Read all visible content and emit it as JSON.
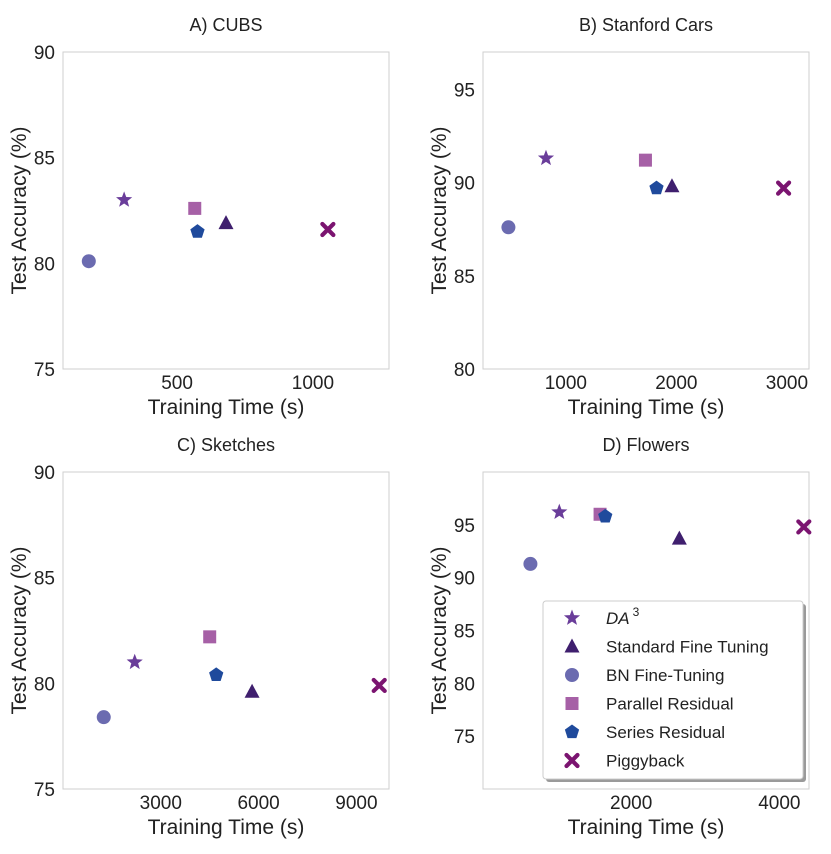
{
  "figure": {
    "xlabel": "Training Time (s)",
    "ylabel": "Test Accuracy (%)"
  },
  "legend": {
    "placement": "lower-right of panel D",
    "entries": [
      {
        "label": "DA",
        "superscript": "3",
        "marker": "star",
        "color": "#6a3d9a"
      },
      {
        "label": "Standard Fine Tuning",
        "marker": "triangle",
        "color": "#3f1f6e"
      },
      {
        "label": "BN Fine-Tuning",
        "marker": "circle",
        "color": "#6b6bb0"
      },
      {
        "label": "Parallel Residual",
        "marker": "square",
        "color": "#a660a6"
      },
      {
        "label": "Series Residual",
        "marker": "pentagon",
        "color": "#1f4a9c"
      },
      {
        "label": "Piggyback",
        "marker": "cross",
        "color": "#7b1470"
      }
    ]
  },
  "chart_data": [
    {
      "type": "scatter",
      "title": "A) CUBS",
      "xlabel": "Training Time (s)",
      "ylabel": "Test Accuracy (%)",
      "xlim": [
        80,
        1280
      ],
      "ylim": [
        75,
        90
      ],
      "xticks": [
        500,
        1000
      ],
      "yticks": [
        75,
        80,
        85,
        90
      ],
      "grid": false,
      "series": [
        {
          "name": "DA3",
          "x": [
            305
          ],
          "y": [
            83.0
          ]
        },
        {
          "name": "Standard Fine Tuning",
          "x": [
            680
          ],
          "y": [
            81.9
          ]
        },
        {
          "name": "BN Fine-Tuning",
          "x": [
            175
          ],
          "y": [
            80.1
          ]
        },
        {
          "name": "Parallel Residual",
          "x": [
            565
          ],
          "y": [
            82.6
          ]
        },
        {
          "name": "Series Residual",
          "x": [
            575
          ],
          "y": [
            81.5
          ]
        },
        {
          "name": "Piggyback",
          "x": [
            1055
          ],
          "y": [
            81.6
          ]
        }
      ]
    },
    {
      "type": "scatter",
      "title": "B) Stanford Cars",
      "xlabel": "Training Time (s)",
      "ylabel": "Test Accuracy (%)",
      "xlim": [
        250,
        3200
      ],
      "ylim": [
        80,
        97
      ],
      "xticks": [
        1000,
        2000,
        3000
      ],
      "yticks": [
        80,
        85,
        90,
        95
      ],
      "grid": false,
      "series": [
        {
          "name": "DA3",
          "x": [
            820
          ],
          "y": [
            91.3
          ]
        },
        {
          "name": "Standard Fine Tuning",
          "x": [
            1960
          ],
          "y": [
            89.8
          ]
        },
        {
          "name": "BN Fine-Tuning",
          "x": [
            480
          ],
          "y": [
            87.6
          ]
        },
        {
          "name": "Parallel Residual",
          "x": [
            1720
          ],
          "y": [
            91.2
          ]
        },
        {
          "name": "Series Residual",
          "x": [
            1820
          ],
          "y": [
            89.7
          ]
        },
        {
          "name": "Piggyback",
          "x": [
            2970
          ],
          "y": [
            89.7
          ]
        }
      ]
    },
    {
      "type": "scatter",
      "title": "C) Sketches",
      "xlabel": "Training Time (s)",
      "ylabel": "Test Accuracy (%)",
      "xlim": [
        0,
        10000
      ],
      "ylim": [
        75,
        90
      ],
      "xticks": [
        3000,
        6000,
        9000
      ],
      "yticks": [
        75,
        80,
        85,
        90
      ],
      "grid": false,
      "series": [
        {
          "name": "DA3",
          "x": [
            2200
          ],
          "y": [
            81.0
          ]
        },
        {
          "name": "Standard Fine Tuning",
          "x": [
            5800
          ],
          "y": [
            79.6
          ]
        },
        {
          "name": "BN Fine-Tuning",
          "x": [
            1250
          ],
          "y": [
            78.4
          ]
        },
        {
          "name": "Parallel Residual",
          "x": [
            4500
          ],
          "y": [
            82.2
          ]
        },
        {
          "name": "Series Residual",
          "x": [
            4700
          ],
          "y": [
            80.4
          ]
        },
        {
          "name": "Piggyback",
          "x": [
            9700
          ],
          "y": [
            79.9
          ]
        }
      ]
    },
    {
      "type": "scatter",
      "title": "D) Flowers",
      "xlabel": "Training Time (s)",
      "ylabel": "Test Accuracy (%)",
      "xlim": [
        0,
        4400
      ],
      "ylim": [
        70,
        100
      ],
      "xticks": [
        2000,
        4000
      ],
      "yticks": [
        75,
        80,
        85,
        90,
        95
      ],
      "grid": false,
      "series": [
        {
          "name": "DA3",
          "x": [
            1030
          ],
          "y": [
            96.2
          ]
        },
        {
          "name": "Standard Fine Tuning",
          "x": [
            2650
          ],
          "y": [
            93.7
          ]
        },
        {
          "name": "BN Fine-Tuning",
          "x": [
            640
          ],
          "y": [
            91.3
          ]
        },
        {
          "name": "Parallel Residual",
          "x": [
            1580
          ],
          "y": [
            96.0
          ]
        },
        {
          "name": "Series Residual",
          "x": [
            1650
          ],
          "y": [
            95.8
          ]
        },
        {
          "name": "Piggyback",
          "x": [
            4330
          ],
          "y": [
            94.8
          ]
        }
      ]
    }
  ]
}
